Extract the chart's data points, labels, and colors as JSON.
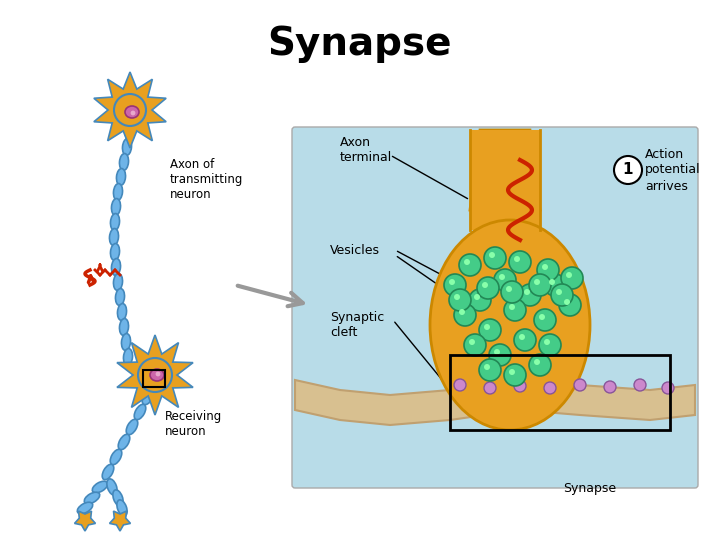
{
  "title": "Synapse",
  "title_fontsize": 28,
  "title_fontweight": "bold",
  "bg_color": "#ffffff",
  "labels": {
    "axon_of_transmitting": "Axon of\ntransmitting\nneuron",
    "axon_terminal": "Axon\nterminal",
    "action_potential": "Action\npotential\narrives",
    "vesicles": "Vesicles",
    "synaptic_cleft": "Synaptic\ncleft",
    "receiving_neuron": "Receiving\nneuron",
    "synapse": "Synapse"
  },
  "colors": {
    "neuron_body": "#E8A020",
    "axon_segments": "#6EB4E8",
    "axon_outline": "#4488BB",
    "cell_nucleus": "#CC66AA",
    "synapse_bg": "#B8DCE8",
    "synapse_terminal_fill": "#E8A020",
    "synapse_terminal_outline": "#CC8800",
    "receiving_membrane": "#D4B896",
    "vesicle_fill": "#44CC88",
    "vesicle_outline": "#228855",
    "vesicle_small_fill": "#AA88CC",
    "vesicle_small_outline": "#885599",
    "red_arrow": "#CC2200",
    "arrow_gray": "#888888",
    "black": "#000000",
    "white": "#ffffff",
    "light_tan": "#D8C090"
  }
}
